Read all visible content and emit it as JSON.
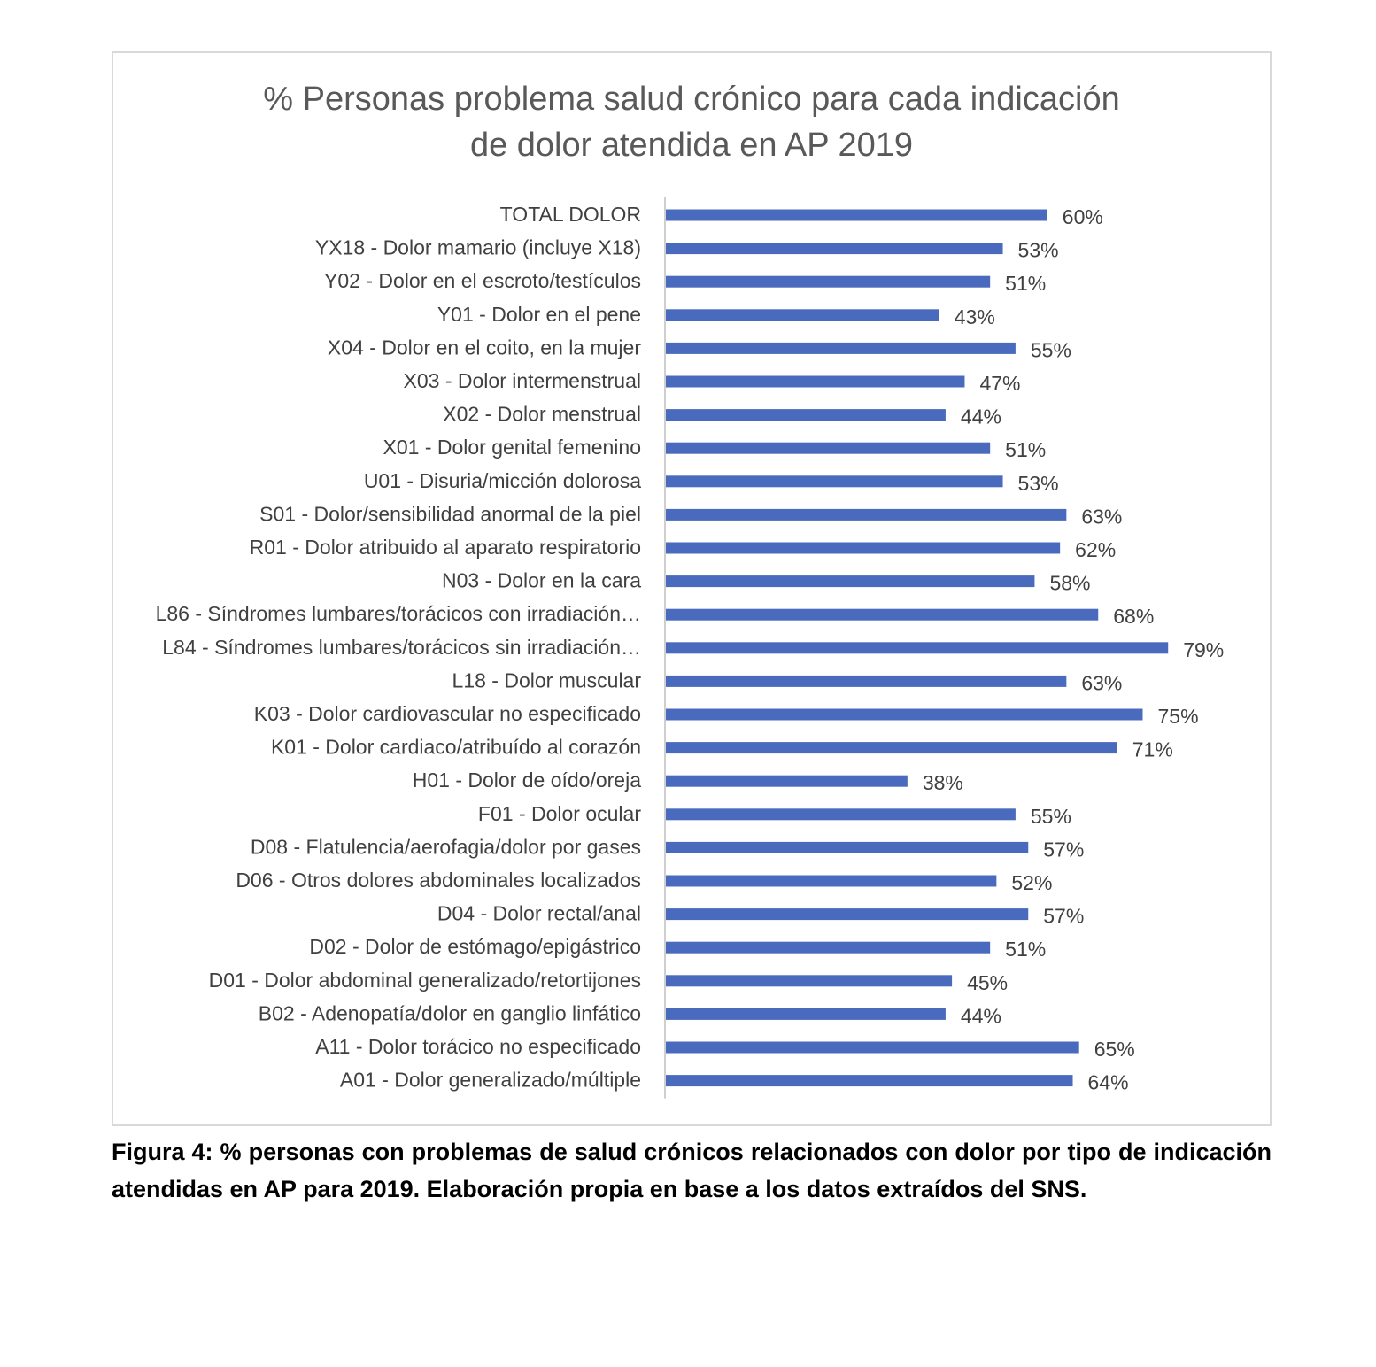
{
  "chart_data": {
    "type": "bar",
    "orientation": "horizontal",
    "title": "% Personas problema salud crónico para cada indicación\nde dolor atendida en AP 2019",
    "categories": [
      "TOTAL DOLOR",
      "YX18 - Dolor mamario (incluye X18)",
      "Y02 - Dolor en el escroto/testículos",
      "Y01 - Dolor en el pene",
      "X04 - Dolor en el coito, en la mujer",
      "X03 - Dolor intermenstrual",
      "X02 - Dolor menstrual",
      "X01 - Dolor genital femenino",
      "U01 - Disuria/micción dolorosa",
      "S01 - Dolor/sensibilidad anormal de la piel",
      "R01 - Dolor atribuido al aparato respiratorio",
      "N03 - Dolor en la cara",
      "L86 - Síndromes lumbares/torácicos con irradiación…",
      "L84 - Síndromes lumbares/torácicos sin irradiación…",
      "L18 - Dolor muscular",
      "K03 - Dolor cardiovascular no especificado",
      "K01 - Dolor cardiaco/atribuído al corazón",
      "H01 - Dolor de oído/oreja",
      "F01 - Dolor ocular",
      "D08 - Flatulencia/aerofagia/dolor por gases",
      "D06 - Otros dolores abdominales localizados",
      "D04 - Dolor rectal/anal",
      "D02 - Dolor de estómago/epigástrico",
      "D01 - Dolor abdominal generalizado/retortijones",
      "B02 - Adenopatía/dolor en ganglio linfático",
      "A11 - Dolor torácico no especificado",
      "A01 - Dolor generalizado/múltiple"
    ],
    "values": [
      60,
      53,
      51,
      43,
      55,
      47,
      44,
      51,
      53,
      63,
      62,
      58,
      68,
      79,
      63,
      75,
      71,
      38,
      55,
      57,
      52,
      57,
      51,
      45,
      44,
      65,
      64
    ],
    "value_labels": [
      "60%",
      "53%",
      "51%",
      "43%",
      "55%",
      "47%",
      "44%",
      "51%",
      "53%",
      "63%",
      "62%",
      "58%",
      "68%",
      "79%",
      "63%",
      "75%",
      "71%",
      "38%",
      "55%",
      "57%",
      "52%",
      "57%",
      "51%",
      "45%",
      "44%",
      "65%",
      "64%"
    ],
    "xlim": [
      0,
      100
    ],
    "grid": false,
    "legend": "none",
    "bar_color": "#4a6bbd"
  },
  "caption": "Figura 4: % personas con problemas de salud crónicos relacionados con dolor por tipo de indicación atendidas en AP para 2019. Elaboración propia en base a los datos extraídos del SNS."
}
